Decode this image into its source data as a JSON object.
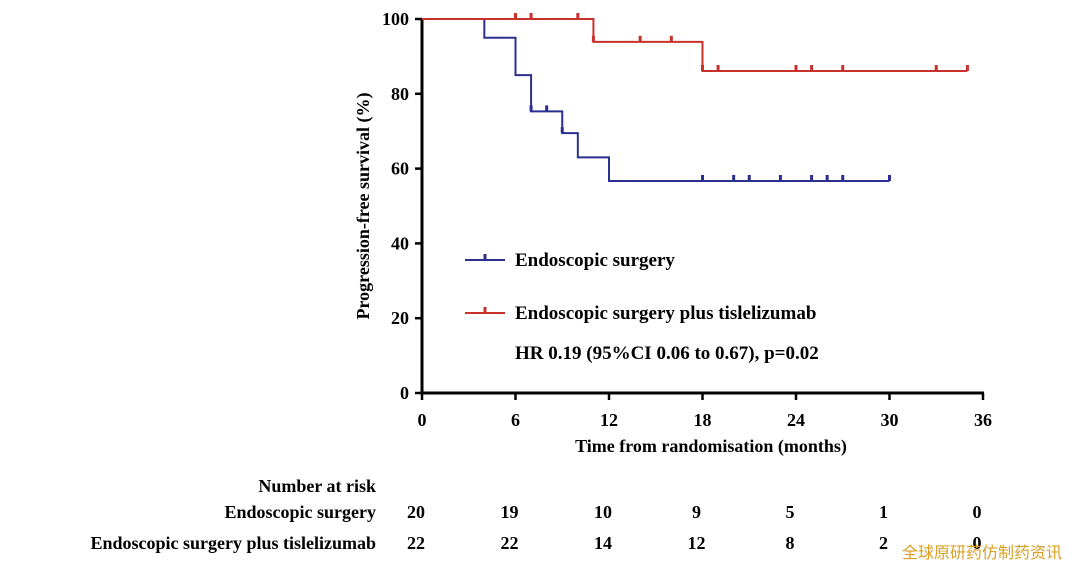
{
  "chart_data": {
    "type": "line",
    "step": true,
    "title": "",
    "xlabel": "Time from randomisation (months)",
    "ylabel": "Progression-free survival (%)",
    "xlim": [
      0,
      36
    ],
    "ylim": [
      0,
      100
    ],
    "x_ticks": [
      0,
      6,
      12,
      18,
      24,
      30,
      36
    ],
    "y_ticks": [
      0,
      20,
      40,
      60,
      80,
      100
    ],
    "grid": false,
    "legend_position": "lower-left",
    "series": [
      {
        "name": "Endoscopic surgery",
        "color": "#2b2f8f",
        "steps": [
          [
            0,
            100
          ],
          [
            4,
            95
          ],
          [
            6,
            85
          ],
          [
            7,
            75.3
          ],
          [
            9,
            69.5
          ],
          [
            10,
            63
          ],
          [
            12,
            56.7
          ],
          [
            30,
            56.7
          ]
        ],
        "censor_times": [
          7,
          8,
          9,
          18,
          20,
          21,
          23,
          25,
          26,
          27,
          30
        ]
      },
      {
        "name": "Endoscopic surgery plus tislelizumab",
        "color": "#c8322d",
        "steps": [
          [
            0,
            100
          ],
          [
            11,
            93.9
          ],
          [
            18,
            86.1
          ],
          [
            35,
            86.1
          ]
        ],
        "censor_times": [
          6,
          7,
          10,
          11,
          14,
          16,
          18,
          19,
          24,
          25,
          27,
          33,
          35
        ]
      }
    ],
    "annotation": "HR 0.19 (95%CI 0.06 to 0.67), p=0.02",
    "risk_table": {
      "title": "Number at risk",
      "times": [
        0,
        6,
        12,
        18,
        24,
        30,
        36
      ],
      "rows": [
        {
          "label": "Endoscopic surgery",
          "values": [
            "20",
            "19",
            "10",
            "9",
            "5",
            "1",
            "0"
          ]
        },
        {
          "label": "Endoscopic surgery plus tislelizumab",
          "values": [
            "22",
            "22",
            "14",
            "12",
            "8",
            "2",
            "0"
          ]
        }
      ]
    }
  },
  "watermark": "全球原研药仿制药资讯"
}
